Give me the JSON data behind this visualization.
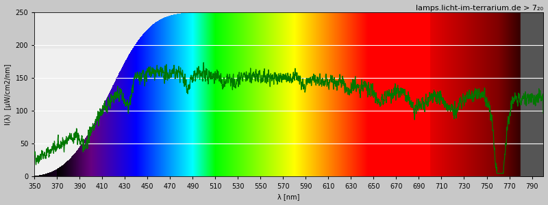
{
  "title": "lamps.licht-im-terrarium.de > 7₂₀",
  "xlabel": "λ [nm]",
  "ylabel": "I(λ)  [µW/cm2/nm]",
  "xlim": [
    350,
    800
  ],
  "ylim": [
    0,
    250
  ],
  "yticks": [
    0,
    50,
    100,
    150,
    200,
    250
  ],
  "xticks": [
    350,
    370,
    390,
    410,
    430,
    450,
    470,
    490,
    510,
    530,
    550,
    570,
    590,
    610,
    630,
    650,
    670,
    690,
    710,
    730,
    750,
    770,
    790
  ],
  "plot_bg_color": "#ffffff",
  "fig_bg_color": "#c8c8c8",
  "ir_bg_color": "#555555",
  "gray_band1_color": "#e8e8e8",
  "gray_band2_color": "#f0f0f0",
  "line_color": "#007700",
  "line_width": 0.9,
  "title_fontsize": 8,
  "axis_fontsize": 7,
  "seed": 42,
  "ir_start": 780
}
